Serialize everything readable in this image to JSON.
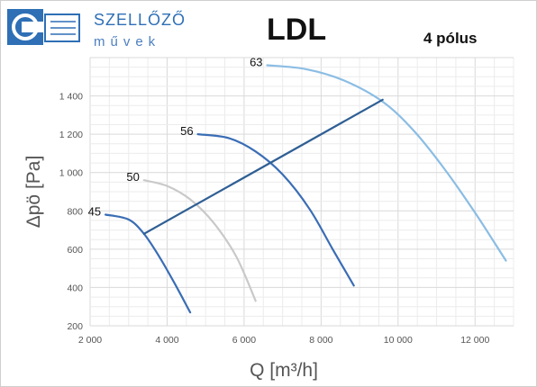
{
  "header": {
    "brand_line1": "SZELLŐZŐ",
    "brand_line2": "művek",
    "title": "LDL",
    "subtitle": "4 pólus"
  },
  "chart_data": {
    "type": "line",
    "title": "LDL",
    "subtitle": "4 pólus",
    "xlabel": "Q [m³/h]",
    "ylabel": "Δpö [Pa]",
    "xlim": [
      2000,
      13000
    ],
    "ylim": [
      200,
      1600
    ],
    "x_ticks": [
      2000,
      4000,
      6000,
      8000,
      10000,
      12000
    ],
    "x_tick_labels": [
      "2 000",
      "4 000",
      "6 000",
      "8 000",
      "10 000",
      "12 000"
    ],
    "y_ticks": [
      200,
      400,
      600,
      800,
      1000,
      1200,
      1400
    ],
    "y_tick_labels": [
      "200",
      "400",
      "600",
      "800",
      "1 000",
      "1 200",
      "1 400"
    ],
    "grid": true,
    "series": [
      {
        "name": "45",
        "color": "#3a6db5",
        "x": [
          2400,
          3000,
          3400,
          3800,
          4200,
          4600
        ],
        "y": [
          780,
          755,
          680,
          560,
          420,
          270
        ]
      },
      {
        "name": "50",
        "color": "#c9c9c9",
        "x": [
          3400,
          4000,
          4600,
          5200,
          5800,
          6300
        ],
        "y": [
          960,
          930,
          860,
          740,
          560,
          330
        ]
      },
      {
        "name": "56",
        "color": "#3a6db5",
        "x": [
          4800,
          5600,
          6300,
          7000,
          7700,
          8300,
          8850
        ],
        "y": [
          1200,
          1180,
          1110,
          990,
          810,
          600,
          410
        ]
      },
      {
        "name": "63",
        "color": "#8bbde4",
        "x": [
          6600,
          7600,
          8600,
          9600,
          10400,
          11200,
          12000,
          12800
        ],
        "y": [
          1560,
          1540,
          1480,
          1370,
          1220,
          1020,
          790,
          540
        ]
      },
      {
        "name": "",
        "color": "#2f5f94",
        "x": [
          3400,
          9600
        ],
        "y": [
          680,
          1380
        ]
      }
    ]
  }
}
